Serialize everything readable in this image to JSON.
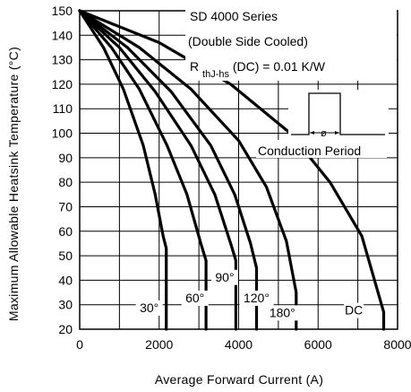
{
  "chart_data": {
    "type": "line",
    "title": "",
    "xlabel": "Average Forward Current (A)",
    "ylabel": "Maximum Allowable Heatsink Temperature (°C)",
    "xlim": [
      0,
      8000
    ],
    "ylim": [
      20,
      150
    ],
    "x_ticks": [
      0,
      2000,
      4000,
      6000,
      8000
    ],
    "y_ticks": [
      20,
      30,
      40,
      50,
      60,
      70,
      80,
      90,
      100,
      110,
      120,
      130,
      140,
      150
    ],
    "grid": true,
    "annotations": {
      "line1": "SD 4000 Series",
      "line2": "(Double Side Cooled)",
      "rth_prefix": "R",
      "rth_sub": "thJ-hs",
      "rth_suffix": " (DC) = 0.01 K/W",
      "conduction_label": "Conduction Period",
      "phi_symbol": "ø"
    },
    "series": [
      {
        "name": "30°",
        "x": [
          0,
          600,
          1100,
          1600,
          1900,
          2100,
          2180,
          2180
        ],
        "y": [
          150,
          135,
          118,
          95,
          75,
          58,
          53,
          20
        ]
      },
      {
        "name": "60°",
        "x": [
          0,
          800,
          1500,
          2200,
          2700,
          3050,
          3180,
          3180
        ],
        "y": [
          150,
          135,
          118,
          95,
          75,
          55,
          48,
          20
        ]
      },
      {
        "name": "90°",
        "x": [
          0,
          1000,
          1900,
          2800,
          3400,
          3800,
          3930,
          3930
        ],
        "y": [
          150,
          135,
          117,
          95,
          75,
          55,
          48,
          20
        ]
      },
      {
        "name": "120°",
        "x": [
          0,
          1200,
          2300,
          3300,
          3900,
          4300,
          4450,
          4450
        ],
        "y": [
          150,
          135,
          117,
          95,
          75,
          55,
          45,
          20
        ]
      },
      {
        "name": "180°",
        "x": [
          0,
          1500,
          2800,
          4000,
          4700,
          5200,
          5450,
          5450
        ],
        "y": [
          150,
          135,
          118,
          97,
          78,
          56,
          35,
          20
        ]
      },
      {
        "name": "DC",
        "x": [
          0,
          2000,
          3800,
          5300,
          6300,
          7100,
          7650,
          7650
        ],
        "y": [
          150,
          137,
          120,
          100,
          80,
          58,
          27,
          20
        ]
      }
    ],
    "curve_labels": [
      "30°",
      "60°",
      "90°",
      "120°",
      "180°",
      "DC"
    ],
    "curve_label_pos": [
      {
        "x": 1750,
        "y": 27
      },
      {
        "x": 2900,
        "y": 31
      },
      {
        "x": 3650,
        "y": 39.5
      },
      {
        "x": 4450,
        "y": 31
      },
      {
        "x": 5100,
        "y": 25
      },
      {
        "x": 6900,
        "y": 26
      }
    ]
  }
}
